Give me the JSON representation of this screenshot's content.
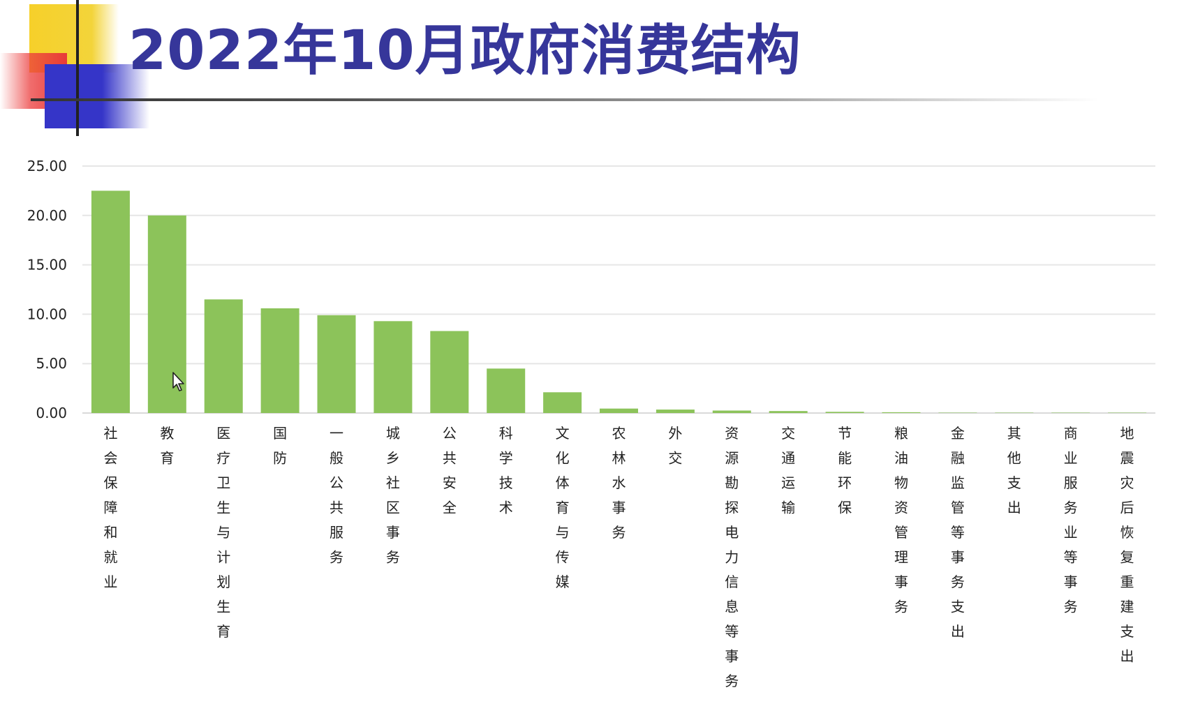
{
  "title": "2022年10月政府消费结构",
  "chart_data": {
    "type": "bar",
    "title": "",
    "xlabel": "",
    "ylabel": "",
    "ylim": [
      0,
      25
    ],
    "yticks": [
      "0.00",
      "5.00",
      "10.00",
      "15.00",
      "20.00",
      "25.00"
    ],
    "grid": true,
    "bar_color": "#8cc35a",
    "categories": [
      "社会保障和就业",
      "教育",
      "医疗卫生与计划生育",
      "国防",
      "一般公共服务",
      "城乡社区事务",
      "公共安全",
      "科学技术",
      "文化体育与传媒",
      "农林水事务",
      "外交",
      "资源勘探电力信息等事务",
      "交通运输",
      "节能环保",
      "粮油物资管理事务",
      "金融监管等事务支出",
      "其他支出",
      "商业服务业等事务",
      "地震灾后恢复重建支出"
    ],
    "values": [
      22.5,
      20.0,
      11.5,
      10.6,
      9.9,
      9.3,
      8.3,
      4.5,
      2.1,
      0.45,
      0.35,
      0.25,
      0.2,
      0.12,
      0.08,
      0.02,
      0.01,
      0.01,
      0.005
    ]
  },
  "colors": {
    "title": "#36369a",
    "grid": "#e6e6e6",
    "axis": "#d9d9d9"
  },
  "icons": {
    "cursor": "mouse-pointer-icon"
  }
}
